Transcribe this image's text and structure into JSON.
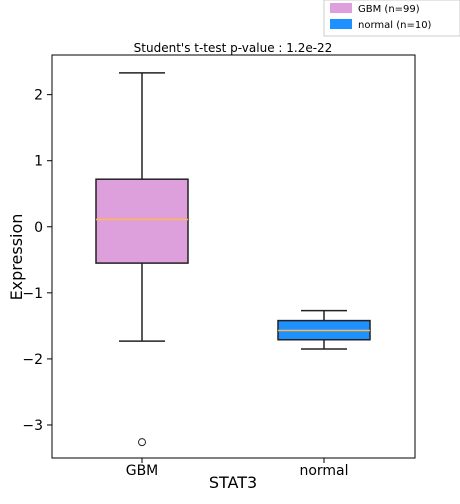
{
  "chart_data": {
    "type": "box",
    "title": "Student's t-test p-value : 1.2e-22",
    "xlabel": "STAT3",
    "ylabel": "Expression",
    "ylim": [
      -3.5,
      2.6
    ],
    "yticks": [
      2,
      1,
      0,
      -1,
      -2,
      -3
    ],
    "ytick_labels": [
      "2",
      "1",
      "0",
      "−1",
      "−2",
      "−3"
    ],
    "grid": false,
    "legend_position": "top-right",
    "categories": [
      "GBM",
      "normal"
    ],
    "series": [
      {
        "legend_label": "GBM (n=99)",
        "color": "#dda0dd",
        "whisker_low": -1.73,
        "q1": -0.55,
        "median": 0.11,
        "q3": 0.72,
        "whisker_high": 2.33,
        "outliers": [
          -3.26
        ]
      },
      {
        "legend_label": "normal (n=10)",
        "color": "#1e90ff",
        "whisker_low": -1.85,
        "q1": -1.71,
        "median": -1.57,
        "q3": -1.42,
        "whisker_high": -1.27,
        "outliers": []
      }
    ],
    "median_color": "#ffb84d"
  }
}
